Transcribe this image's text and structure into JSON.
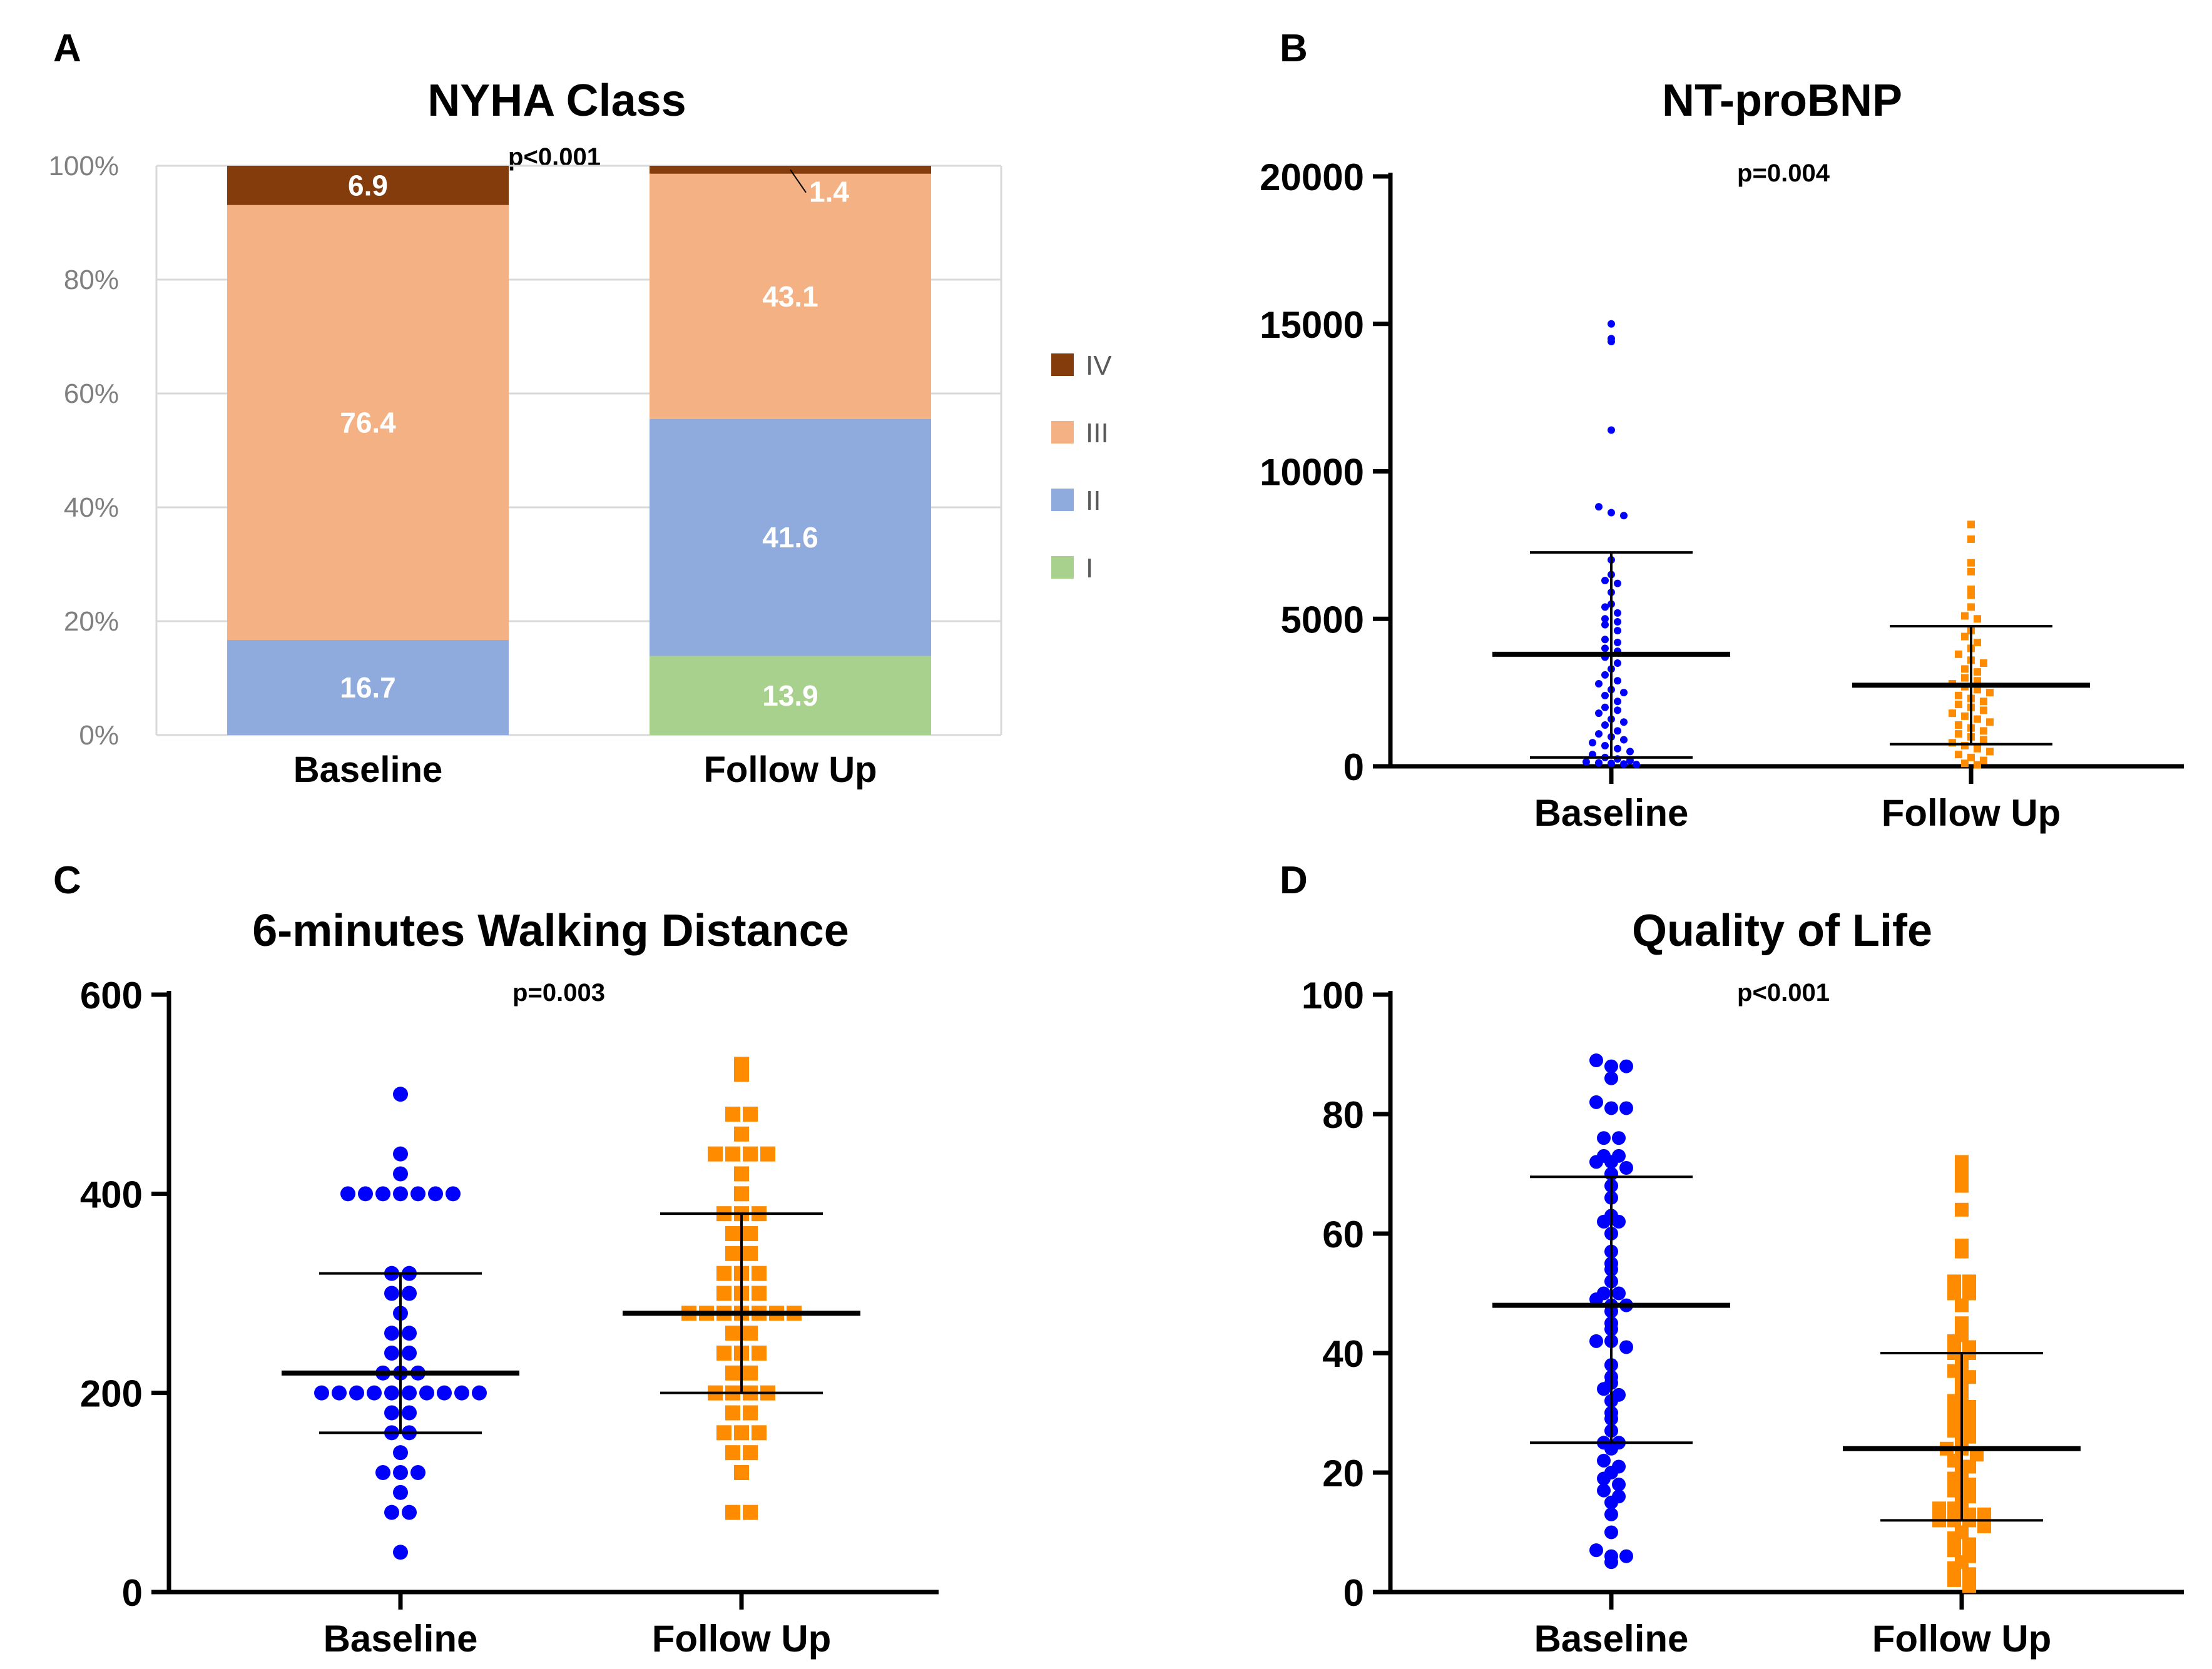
{
  "chart_data": [
    {
      "panel": "A",
      "type": "stacked_bar",
      "title": "NYHA Class",
      "annotation": "p<0.001",
      "categories": [
        "Baseline",
        "Follow Up"
      ],
      "ylim": [
        0,
        100
      ],
      "yticks": [
        "0%",
        "20%",
        "40%",
        "60%",
        "80%",
        "100%"
      ],
      "grid": true,
      "legend_position": "right",
      "series": [
        {
          "name": "I",
          "color": "#a9d18e",
          "values": [
            0,
            13.9
          ],
          "labels": [
            "",
            "13.9"
          ]
        },
        {
          "name": "II",
          "color": "#8faadc",
          "values": [
            16.7,
            41.6
          ],
          "labels": [
            "16.7",
            "41.6"
          ]
        },
        {
          "name": "III",
          "color": "#f4b183",
          "values": [
            76.4,
            43.1
          ],
          "labels": [
            "76.4",
            "43.1"
          ]
        },
        {
          "name": "IV",
          "color": "#843c0c",
          "values": [
            6.9,
            1.4
          ],
          "labels": [
            "6.9",
            "1.4"
          ]
        }
      ]
    },
    {
      "panel": "B",
      "type": "scatter",
      "title": "NT-proBNP",
      "annotation": "p=0.004",
      "categories": [
        "Baseline",
        "Follow Up"
      ],
      "ylim": [
        0,
        20000
      ],
      "yticks": [
        "0",
        "5000",
        "10000",
        "15000",
        "20000"
      ],
      "marker": "dot-small",
      "groups": [
        {
          "name": "Baseline",
          "color": "#0000ff",
          "mean": 3800,
          "sd_high": 7250,
          "sd_low": 300,
          "values": [
            15000,
            14500,
            14400,
            11400,
            8800,
            8600,
            8500,
            7000,
            6500,
            6300,
            6200,
            5900,
            5500,
            5400,
            5200,
            5000,
            4900,
            4800,
            4600,
            4300,
            4200,
            4000,
            3900,
            3700,
            3500,
            3300,
            3100,
            2900,
            2800,
            2600,
            2500,
            2400,
            2200,
            2000,
            1900,
            1800,
            1600,
            1500,
            1400,
            1200,
            1100,
            1000,
            900,
            800,
            700,
            600,
            500,
            400,
            300,
            250,
            200,
            150,
            120,
            100,
            80,
            60
          ]
        },
        {
          "name": "Follow Up",
          "color": "#ff8c00",
          "mean": 2750,
          "sd_high": 4750,
          "sd_low": 750,
          "values": [
            8200,
            7700,
            6900,
            6600,
            6000,
            5800,
            5400,
            5100,
            5000,
            4600,
            4400,
            4200,
            4000,
            3800,
            3600,
            3500,
            3300,
            3200,
            3000,
            2900,
            2800,
            2700,
            2600,
            2500,
            2400,
            2300,
            2200,
            2100,
            2000,
            1900,
            1800,
            1700,
            1600,
            1500,
            1400,
            1300,
            1200,
            1100,
            1000,
            900,
            800,
            700,
            600,
            500,
            400,
            300,
            200,
            100,
            50
          ]
        }
      ]
    },
    {
      "panel": "C",
      "type": "scatter",
      "title": "6-minutes Walking Distance",
      "annotation": "p=0.003",
      "categories": [
        "Baseline",
        "Follow Up"
      ],
      "ylim": [
        0,
        600
      ],
      "yticks": [
        "0",
        "200",
        "400",
        "600"
      ],
      "marker": "dot-large",
      "groups": [
        {
          "name": "Baseline",
          "color": "#0000ff",
          "mean": 220,
          "sd_high": 320,
          "sd_low": 160,
          "values": [
            500,
            440,
            420,
            400,
            400,
            400,
            400,
            400,
            400,
            400,
            320,
            320,
            300,
            300,
            280,
            260,
            260,
            240,
            240,
            220,
            220,
            220,
            200,
            200,
            200,
            200,
            200,
            200,
            200,
            200,
            200,
            200,
            180,
            180,
            160,
            160,
            140,
            120,
            120,
            120,
            100,
            80,
            80,
            40
          ]
        },
        {
          "name": "Follow Up",
          "color": "#ff8c00",
          "mean": 280,
          "sd_high": 380,
          "sd_low": 200,
          "values": [
            530,
            520,
            480,
            480,
            460,
            440,
            440,
            440,
            440,
            420,
            400,
            380,
            380,
            380,
            360,
            360,
            340,
            340,
            320,
            320,
            320,
            300,
            300,
            300,
            280,
            280,
            280,
            280,
            280,
            280,
            280,
            260,
            260,
            240,
            240,
            240,
            220,
            220,
            200,
            200,
            200,
            200,
            180,
            180,
            160,
            160,
            160,
            140,
            140,
            120,
            80,
            80
          ]
        }
      ]
    },
    {
      "panel": "D",
      "type": "scatter",
      "title": "Quality of Life",
      "annotation": "p<0.001",
      "categories": [
        "Baseline",
        "Follow Up"
      ],
      "ylim": [
        0,
        100
      ],
      "yticks": [
        "0",
        "20",
        "40",
        "60",
        "80",
        "100"
      ],
      "marker": "dot-large / square-large",
      "groups": [
        {
          "name": "Baseline",
          "color": "#0000ff",
          "mean": 48,
          "sd_high": 69.5,
          "sd_low": 25,
          "values": [
            89,
            88,
            88,
            86,
            82,
            81,
            81,
            76,
            76,
            73,
            73,
            72,
            72,
            71,
            70,
            68,
            66,
            63,
            62,
            62,
            60,
            57,
            55,
            54,
            52,
            50,
            50,
            49,
            48,
            48,
            47,
            45,
            44,
            42,
            42,
            41,
            38,
            36,
            35,
            34,
            33,
            32,
            30,
            29,
            27,
            25,
            25,
            24,
            22,
            21,
            20,
            19,
            18,
            17,
            16,
            15,
            13,
            10,
            7,
            6,
            6,
            5
          ]
        },
        {
          "name": "Follow Up",
          "color": "#ff8c00",
          "mean": 24,
          "sd_high": 40,
          "sd_low": 12,
          "values": [
            72,
            70,
            68,
            64,
            58,
            57,
            52,
            52,
            50,
            50,
            48,
            45,
            43,
            42,
            41,
            40,
            40,
            38,
            37,
            36,
            35,
            33,
            32,
            31,
            30,
            30,
            29,
            28,
            27,
            26,
            25,
            24,
            24,
            23,
            22,
            21,
            20,
            19,
            18,
            17,
            16,
            15,
            14,
            14,
            13,
            13,
            12,
            12,
            12,
            11,
            10,
            9,
            8,
            7,
            6,
            5,
            4,
            3,
            2,
            1
          ]
        }
      ]
    }
  ],
  "panels": {
    "a": {
      "letter": "A"
    },
    "b": {
      "letter": "B"
    },
    "c": {
      "letter": "C"
    },
    "d": {
      "letter": "D"
    }
  }
}
